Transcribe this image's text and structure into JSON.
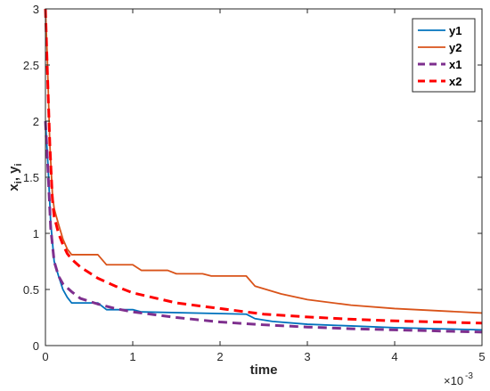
{
  "chart_data": {
    "type": "line",
    "xlabel": "time",
    "ylabel": "x_i, y_i",
    "x_exponent_label": "×10",
    "x_exponent_power": "-3",
    "xlim": [
      0,
      5
    ],
    "ylim": [
      0,
      3
    ],
    "x_ticks": [
      "0",
      "1",
      "2",
      "3",
      "4",
      "5"
    ],
    "y_ticks": [
      "0",
      "0.5",
      "1",
      "1.5",
      "2",
      "2.5",
      "3"
    ],
    "grid": false,
    "legend_position": "top-right",
    "series": [
      {
        "name": "y1",
        "color": "#0072BD",
        "style": "solid",
        "x": [
          0,
          0.03,
          0.06,
          0.1,
          0.15,
          0.2,
          0.25,
          0.3,
          0.6,
          0.7,
          1.0,
          1.1,
          2.3,
          2.4,
          2.6,
          3.0,
          3.5,
          4.0,
          4.5,
          5.0
        ],
        "y": [
          2.0,
          1.6,
          1.1,
          0.75,
          0.62,
          0.5,
          0.43,
          0.38,
          0.38,
          0.32,
          0.32,
          0.3,
          0.28,
          0.24,
          0.215,
          0.19,
          0.175,
          0.16,
          0.15,
          0.14
        ]
      },
      {
        "name": "y2",
        "color": "#D95319",
        "style": "solid",
        "x": [
          0,
          0.02,
          0.05,
          0.08,
          0.1,
          0.15,
          0.2,
          0.25,
          0.3,
          0.6,
          0.7,
          1.0,
          1.1,
          1.4,
          1.5,
          1.8,
          1.9,
          2.3,
          2.4,
          2.7,
          3.0,
          3.5,
          4.0,
          4.5,
          5.0
        ],
        "y": [
          3.0,
          2.6,
          1.8,
          1.35,
          1.22,
          1.08,
          0.95,
          0.86,
          0.81,
          0.81,
          0.72,
          0.72,
          0.67,
          0.67,
          0.64,
          0.64,
          0.62,
          0.62,
          0.53,
          0.46,
          0.41,
          0.36,
          0.33,
          0.31,
          0.29
        ]
      },
      {
        "name": "x1",
        "color": "#7E2F8E",
        "style": "dashed",
        "x": [
          0,
          0.03,
          0.06,
          0.1,
          0.15,
          0.2,
          0.3,
          0.4,
          0.6,
          0.8,
          1.0,
          1.5,
          2.0,
          2.5,
          3.0,
          3.5,
          4.0,
          4.5,
          5.0
        ],
        "y": [
          2.0,
          1.55,
          1.05,
          0.75,
          0.62,
          0.55,
          0.48,
          0.42,
          0.37,
          0.33,
          0.3,
          0.25,
          0.21,
          0.185,
          0.165,
          0.15,
          0.14,
          0.13,
          0.12
        ]
      },
      {
        "name": "x2",
        "color": "#FF0000",
        "style": "dashed",
        "x": [
          0,
          0.02,
          0.05,
          0.08,
          0.1,
          0.15,
          0.2,
          0.25,
          0.3,
          0.4,
          0.6,
          0.8,
          1.0,
          1.5,
          2.0,
          2.5,
          3.0,
          3.5,
          4.0,
          4.5,
          5.0
        ],
        "y": [
          3.0,
          2.5,
          1.8,
          1.3,
          1.15,
          1.0,
          0.9,
          0.82,
          0.77,
          0.7,
          0.6,
          0.53,
          0.47,
          0.38,
          0.33,
          0.28,
          0.255,
          0.235,
          0.22,
          0.21,
          0.2
        ]
      }
    ]
  }
}
